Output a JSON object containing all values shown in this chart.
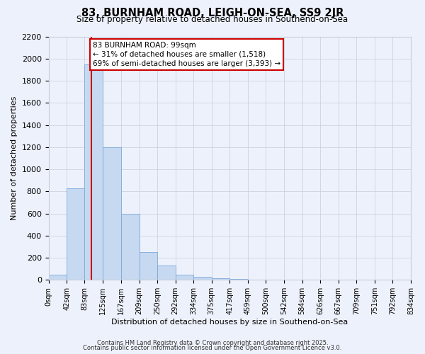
{
  "title": "83, BURNHAM ROAD, LEIGH-ON-SEA, SS9 2JR",
  "subtitle": "Size of property relative to detached houses in Southend-on-Sea",
  "xlabel": "Distribution of detached houses by size in Southend-on-Sea",
  "ylabel": "Number of detached properties",
  "annotation_line1": "83 BURNHAM ROAD: 99sqm",
  "annotation_line2": "← 31% of detached houses are smaller (1,518)",
  "annotation_line3": "69% of semi-detached houses are larger (3,393) →",
  "property_size": 99,
  "bins": [
    0,
    42,
    83,
    125,
    167,
    209,
    250,
    292,
    334,
    375,
    417,
    459,
    500,
    542,
    584,
    626,
    667,
    709,
    751,
    792,
    834
  ],
  "bin_labels": [
    "0sqm",
    "42sqm",
    "83sqm",
    "125sqm",
    "167sqm",
    "209sqm",
    "250sqm",
    "292sqm",
    "334sqm",
    "375sqm",
    "417sqm",
    "459sqm",
    "500sqm",
    "542sqm",
    "584sqm",
    "626sqm",
    "667sqm",
    "709sqm",
    "751sqm",
    "792sqm",
    "834sqm"
  ],
  "counts": [
    50,
    830,
    1950,
    1200,
    600,
    250,
    130,
    50,
    30,
    15,
    8,
    4,
    3,
    2,
    1,
    1,
    0,
    0,
    0,
    0
  ],
  "bar_color": "#c6d9f0",
  "bar_edge_color": "#7aaadc",
  "vline_color": "#cc0000",
  "annotation_box_color": "#cc0000",
  "bg_color": "#edf1fb",
  "grid_color": "#c8cdd8",
  "ylim": [
    0,
    2200
  ],
  "yticks": [
    0,
    200,
    400,
    600,
    800,
    1000,
    1200,
    1400,
    1600,
    1800,
    2000,
    2200
  ],
  "footer_line1": "Contains HM Land Registry data © Crown copyright and database right 2025.",
  "footer_line2": "Contains public sector information licensed under the Open Government Licence v3.0."
}
